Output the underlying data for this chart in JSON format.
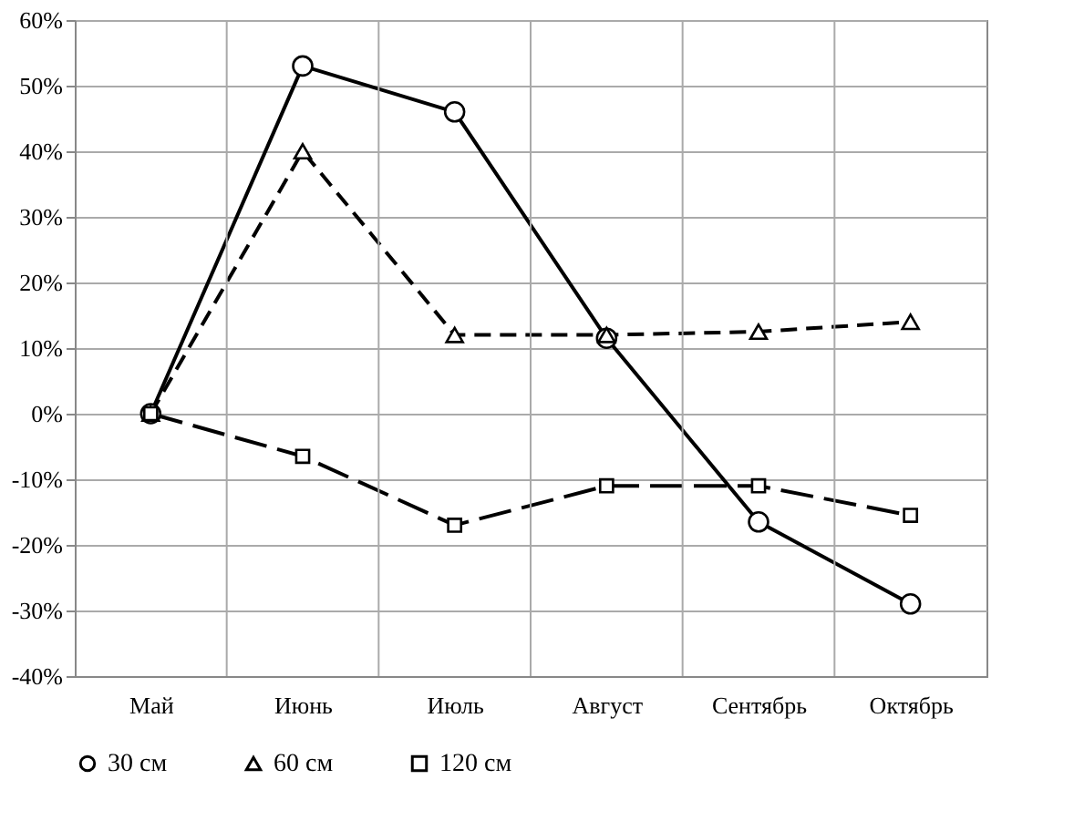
{
  "chart_data": {
    "type": "line",
    "categories": [
      "Май",
      "Июнь",
      "Июль",
      "Август",
      "Сентябрь",
      "Октябрь"
    ],
    "series": [
      {
        "name": "30 см",
        "color": "#000000",
        "marker": "circle",
        "line_style": "solid",
        "values": [
          0,
          53,
          46,
          11.5,
          -16.5,
          -29
        ]
      },
      {
        "name": "60 см",
        "color": "#000000",
        "marker": "triangle",
        "line_style": "dashed",
        "values": [
          0,
          40,
          12,
          12,
          12.5,
          14
        ]
      },
      {
        "name": "120 см",
        "color": "#000000",
        "marker": "square",
        "line_style": "longdash",
        "values": [
          0,
          -6.5,
          -17,
          -11,
          -11,
          -15.5
        ]
      }
    ],
    "ylim": [
      -40,
      60
    ],
    "yticks": [
      {
        "value": -40,
        "label": "-40%"
      },
      {
        "value": -30,
        "label": "-30%"
      },
      {
        "value": -20,
        "label": "-20%"
      },
      {
        "value": -10,
        "label": "-10%"
      },
      {
        "value": 0,
        "label": "0%"
      },
      {
        "value": 10,
        "label": "10%"
      },
      {
        "value": 20,
        "label": "20%"
      },
      {
        "value": 30,
        "label": "30%"
      },
      {
        "value": 40,
        "label": "40%"
      },
      {
        "value": 50,
        "label": "50%"
      },
      {
        "value": 60,
        "label": "60%"
      }
    ],
    "grid": true,
    "legend": "bottom"
  }
}
